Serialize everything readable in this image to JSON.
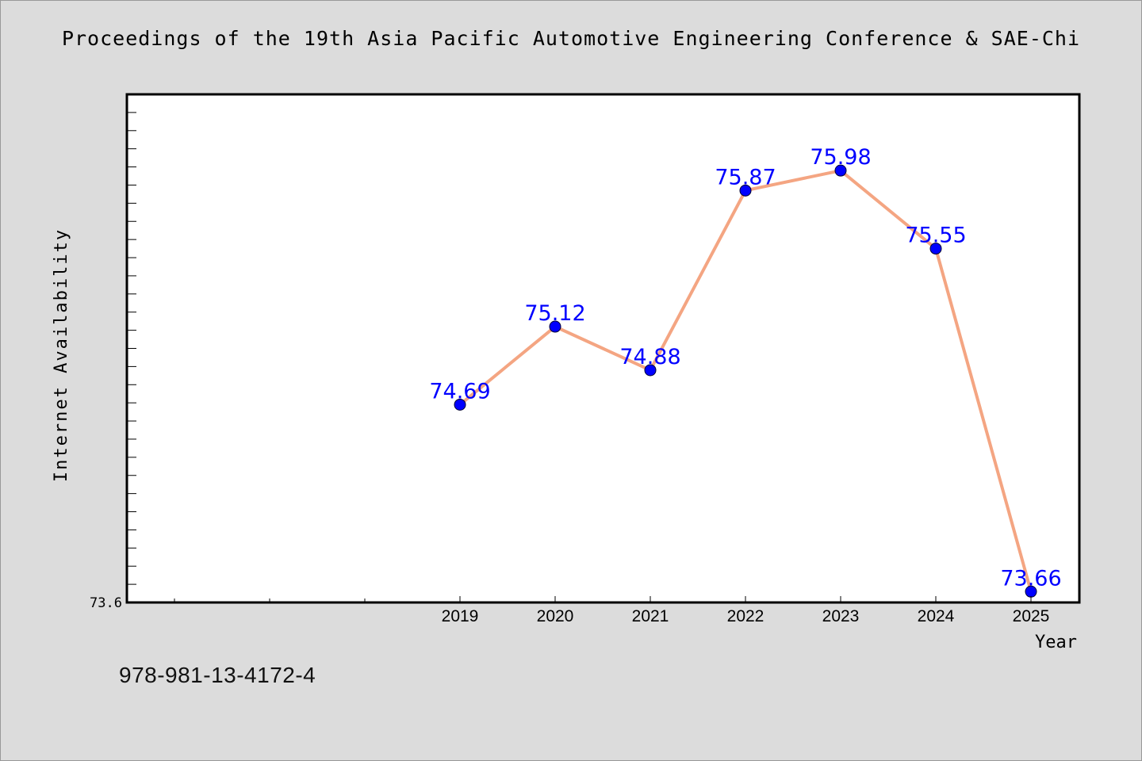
{
  "title": "Proceedings of the 19th Asia Pacific Automotive Engineering Conference & SAE-Chi",
  "isbn": "978-981-13-4172-4",
  "chart_data": {
    "type": "line",
    "title": "Proceedings of the 19th Asia Pacific Automotive Engineering Conference & SAE-Chi",
    "xlabel": "Year",
    "ylabel": "Internet Availability",
    "categories": [
      "2019",
      "2020",
      "2021",
      "2022",
      "2023",
      "2024",
      "2025"
    ],
    "series": [
      {
        "values": [
          74.69,
          75.12,
          74.88,
          75.87,
          75.98,
          75.55,
          73.66
        ]
      }
    ],
    "data_labels": [
      "74.69",
      "75.12",
      "74.88",
      "75.87",
      "75.98",
      "75.55",
      "73.66"
    ],
    "x_category_slots": 10,
    "ylim": [
      73.6,
      76.4
    ],
    "y_tick_labels": [
      "73.6"
    ],
    "y_minor_step": 0.1,
    "grid": false,
    "colors": {
      "line": "#f4a582",
      "marker": "#0000ff",
      "data_label": "#0000ff",
      "plot_bg": "#ffffff",
      "page_bg": "#dcdcdc"
    }
  }
}
